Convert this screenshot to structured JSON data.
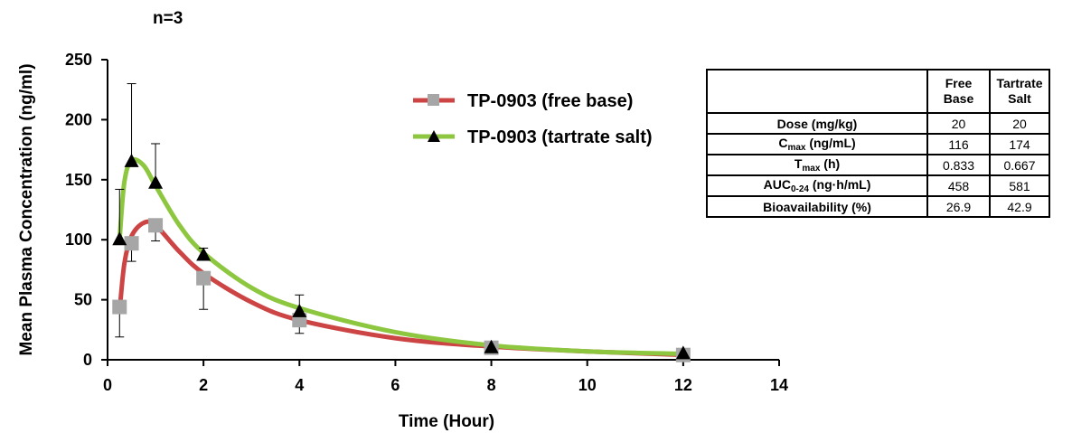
{
  "annotation": "n=3",
  "legend": {
    "free_base": "TP-0903 (free base)",
    "tartrate_salt": "TP-0903 (tartrate salt)"
  },
  "colors": {
    "free_base_line": "#cc4444",
    "free_base_marker": "#a6a6a6",
    "tartrate_line": "#8dc63f",
    "tartrate_marker": "#000000"
  },
  "chart_data": {
    "type": "line",
    "xlabel": "Time (Hour)",
    "ylabel": "Mean Plasma Concentration (ng/ml)",
    "xlim": [
      0,
      14
    ],
    "ylim": [
      0,
      250
    ],
    "xticks": [
      0,
      2,
      4,
      6,
      8,
      10,
      12,
      14
    ],
    "yticks": [
      0,
      50,
      100,
      150,
      200,
      250
    ],
    "grid": false,
    "legend_position": "top-center",
    "series": [
      {
        "name": "TP-0903 (free base)",
        "marker": "square",
        "x": [
          0.25,
          0.5,
          1,
          2,
          4,
          8,
          12
        ],
        "y": [
          44,
          97,
          112,
          68,
          33,
          10,
          4
        ],
        "error": [
          25,
          15,
          13,
          26,
          11,
          3,
          2
        ],
        "fit": [
          [
            0.25,
            40
          ],
          [
            0.35,
            80
          ],
          [
            0.5,
            103
          ],
          [
            0.75,
            114
          ],
          [
            1,
            112
          ],
          [
            1.5,
            90
          ],
          [
            2,
            72
          ],
          [
            3,
            48
          ],
          [
            4,
            33
          ],
          [
            6,
            18
          ],
          [
            8,
            11
          ],
          [
            10,
            7
          ],
          [
            12,
            4
          ]
        ]
      },
      {
        "name": "TP-0903 (tartrate salt)",
        "marker": "triangle",
        "x": [
          0.25,
          0.5,
          1,
          2,
          4,
          8,
          12
        ],
        "y": [
          100,
          165,
          147,
          87,
          40,
          10,
          5
        ],
        "error": [
          42,
          65,
          33,
          6,
          14,
          3,
          2
        ],
        "fit": [
          [
            0.25,
            100
          ],
          [
            0.35,
            148
          ],
          [
            0.5,
            166
          ],
          [
            0.75,
            162
          ],
          [
            1,
            145
          ],
          [
            1.5,
            112
          ],
          [
            2,
            89
          ],
          [
            3,
            60
          ],
          [
            4,
            43
          ],
          [
            6,
            23
          ],
          [
            8,
            12
          ],
          [
            10,
            7
          ],
          [
            12,
            5
          ]
        ]
      }
    ]
  },
  "table": {
    "headers": [
      "",
      "Free Base",
      "Tartrate Salt"
    ],
    "header_lines": [
      [
        "Free",
        "Base"
      ],
      [
        "Tartrate",
        "Salt"
      ]
    ],
    "rows": [
      {
        "label": "Dose (mg/kg)",
        "free": "20",
        "tartrate": "20"
      },
      {
        "label_main": "C",
        "label_sub": "max",
        "label_rest": " (ng/mL)",
        "free": "116",
        "tartrate": "174"
      },
      {
        "label_main": "T",
        "label_sub": "max",
        "label_rest": " (h)",
        "free": "0.833",
        "tartrate": "0.667"
      },
      {
        "label_main": "AUC",
        "label_sub": "0-24",
        "label_rest": " (ng·h/mL)",
        "free": "458",
        "tartrate": "581"
      },
      {
        "label": "Bioavailability (%)",
        "free": "26.9",
        "tartrate": "42.9"
      }
    ]
  }
}
